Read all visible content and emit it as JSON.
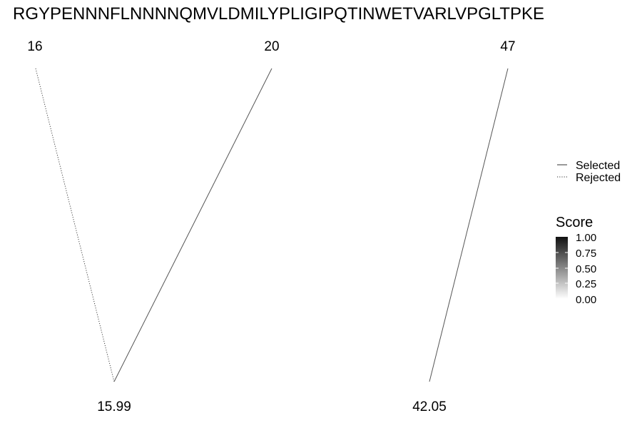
{
  "sequence": "RGYPENNNFLNNNNQMVLDMILYPLIGIPQTINWETVARLVPGLTPKE",
  "chart_data": {
    "type": "diagram",
    "top_labels": [
      "16",
      "20",
      "47"
    ],
    "bottom_labels": [
      "15.99",
      "42.05"
    ],
    "connections": [
      {
        "from": "16",
        "to": "15.99",
        "status": "Rejected",
        "score": 0.6
      },
      {
        "from": "20",
        "to": "15.99",
        "status": "Selected",
        "score": 0.7
      },
      {
        "from": "47",
        "to": "42.05",
        "status": "Selected",
        "score": 0.7
      }
    ],
    "legend": {
      "line_types": [
        {
          "label": "Selected",
          "style": "solid"
        },
        {
          "label": "Rejected",
          "style": "dotted"
        }
      ],
      "score": {
        "title": "Score",
        "ticks": [
          "1.00",
          "0.75",
          "0.50",
          "0.25",
          "0.00"
        ],
        "range": [
          0,
          1
        ]
      }
    }
  }
}
